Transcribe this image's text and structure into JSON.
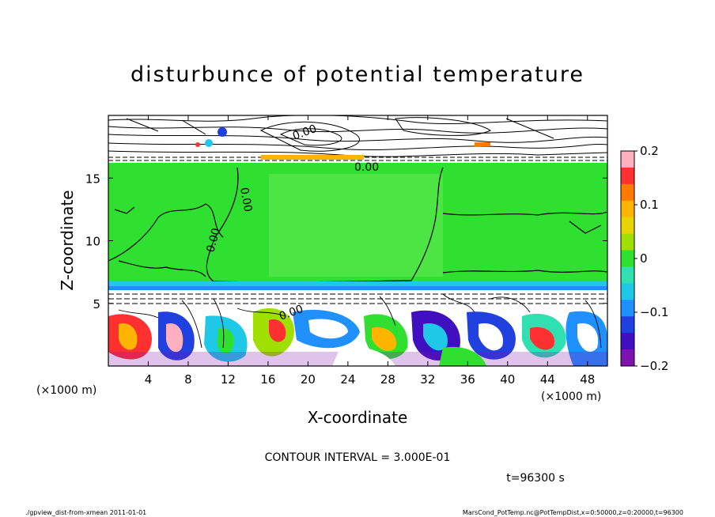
{
  "chart_data": {
    "type": "heatmap",
    "title": "disturbunce of potential temperature",
    "xlabel": "X-coordinate",
    "ylabel": "Z-coordinate",
    "x_unit_left": "(×1000 m)",
    "x_unit_right": "(×1000 m)",
    "xlim": [
      0,
      50
    ],
    "ylim": [
      0,
      20
    ],
    "x_ticks": [
      4,
      8,
      12,
      16,
      20,
      24,
      28,
      32,
      36,
      40,
      44,
      48
    ],
    "y_ticks": [
      5,
      10,
      15
    ],
    "colorbar": {
      "range": [
        -0.2,
        0.2
      ],
      "tick_labels": [
        "0.2",
        "0.1",
        "0",
        "−0.1",
        "−0.2"
      ],
      "tick_values": [
        0.2,
        0.1,
        0,
        -0.1,
        -0.2
      ],
      "colors": [
        "#ffb0c0",
        "#ff3030",
        "#ff7a00",
        "#ffb400",
        "#e8d400",
        "#a0e000",
        "#30e030",
        "#30e0b0",
        "#20c8e8",
        "#2090ff",
        "#2040e0",
        "#4010c0",
        "#8010b0"
      ]
    },
    "contour_labels": [
      "0.00",
      "0.00",
      "0.00",
      "0.00",
      "0.00"
    ],
    "annotation": "CONTOUR INTERVAL = 3.000E-01",
    "time_label": "t=96300 s",
    "layers": [
      {
        "z_range": [
          16.2,
          20
        ],
        "description_value": 0
      },
      {
        "z_range": [
          6.3,
          16.2
        ],
        "value": 0
      },
      {
        "z_range": [
          5.7,
          6.3
        ],
        "value": -0.05
      },
      {
        "z_range": [
          0,
          5.7
        ],
        "value_range": [
          -0.2,
          0.2
        ]
      }
    ]
  },
  "footer": {
    "left": "./gpview_dist-from-xmean   2011-01-01",
    "right": "MarsCond_PotTemp.nc@PotTempDist,x=0:50000,z=0:20000,t=96300"
  }
}
